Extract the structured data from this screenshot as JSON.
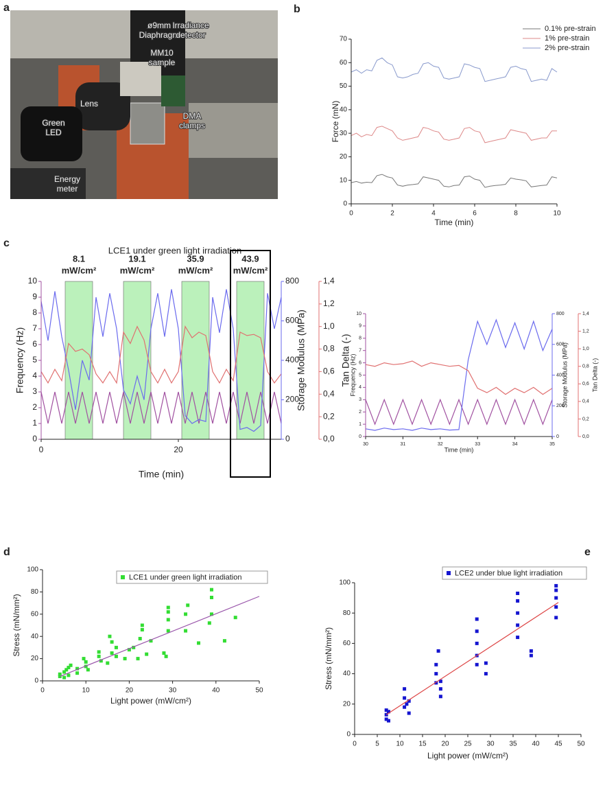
{
  "panels": [
    "a",
    "b",
    "c",
    "d",
    "e"
  ],
  "photo": {
    "labels": [
      {
        "lines": [
          "ø9mm",
          "Diaphragm"
        ]
      },
      {
        "lines": [
          "MM10",
          "sample"
        ]
      },
      {
        "lines": [
          "Irradiance",
          "detector"
        ]
      },
      {
        "lines": [
          "Lens"
        ]
      },
      {
        "lines": [
          "Green",
          "LED"
        ]
      },
      {
        "lines": [
          "DMA",
          "clamps"
        ]
      },
      {
        "lines": [
          "Energy",
          "meter"
        ]
      }
    ]
  },
  "chart_data": [
    {
      "type": "line",
      "xlabel": "Time (min)",
      "ylabel": "Force (mN)",
      "xlim": [
        0,
        10
      ],
      "ylim": [
        0,
        70
      ],
      "xticks": [
        0,
        2,
        4,
        6,
        8,
        10
      ],
      "yticks": [
        0,
        10,
        20,
        30,
        40,
        50,
        60,
        70
      ],
      "legend": "top-right",
      "x": [
        0,
        0.25,
        0.5,
        0.75,
        1,
        1.25,
        1.5,
        1.75,
        2,
        2.25,
        2.5,
        2.75,
        3,
        3.25,
        3.5,
        3.75,
        4,
        4.25,
        4.5,
        4.75,
        5,
        5.25,
        5.5,
        5.75,
        6,
        6.25,
        6.5,
        6.75,
        7,
        7.25,
        7.5,
        7.75,
        8,
        8.25,
        8.5,
        8.75,
        9,
        9.25,
        9.5,
        9.75,
        10
      ],
      "series": [
        {
          "name": "0.1% pre-strain",
          "color": "#777777",
          "values": [
            9,
            9.5,
            8.8,
            9.2,
            9,
            12,
            12.5,
            11.5,
            11,
            8,
            7.5,
            8,
            8.2,
            8.5,
            11.5,
            11,
            10.5,
            10,
            7.5,
            7.2,
            7.8,
            8,
            11.5,
            11.8,
            10.5,
            10,
            7,
            7.5,
            7.8,
            8,
            8.3,
            11,
            10.5,
            10.2,
            9.8,
            7.2,
            7.5,
            7.8,
            8,
            11.5,
            11
          ]
        },
        {
          "name": "1% pre-strain",
          "color": "#dd8888",
          "values": [
            29,
            30,
            28.5,
            29.5,
            29,
            32.5,
            33,
            32,
            31,
            28,
            27,
            27.5,
            28,
            28.5,
            32.5,
            32,
            31,
            30.5,
            27.5,
            27,
            27.5,
            28,
            32,
            32.5,
            31,
            30.5,
            26,
            26.5,
            27,
            27.5,
            28,
            31.5,
            31,
            30.5,
            30,
            27,
            27.5,
            28,
            28,
            31,
            31
          ]
        },
        {
          "name": "2% pre-strain",
          "color": "#8899cc",
          "values": [
            56,
            57,
            55.5,
            57,
            56.5,
            61,
            62,
            60,
            59,
            54,
            53.5,
            54,
            55,
            55.5,
            59.5,
            60,
            58.5,
            58,
            53.5,
            53,
            53.5,
            54,
            59.5,
            59,
            58,
            57.5,
            52,
            52.5,
            53,
            53.5,
            54,
            58,
            58.5,
            57.5,
            57,
            52,
            52.5,
            53,
            52.5,
            57.5,
            56
          ]
        }
      ]
    },
    {
      "type": "line",
      "title": "LCE1 under green light irradiation",
      "xlabel": "Time (min)",
      "ylabel": "Frequency (Hz)",
      "y2label": "Storage Modulus (MPa)",
      "y3label": "Tan Delta (-)",
      "xlim": [
        0,
        35
      ],
      "ylim": [
        0,
        10
      ],
      "y2lim": [
        0,
        800
      ],
      "y3lim": [
        0,
        1.4
      ],
      "xticks": [
        0,
        20
      ],
      "yticks": [
        0,
        1,
        2,
        3,
        4,
        5,
        6,
        7,
        8,
        9,
        10
      ],
      "y2ticks": [
        0,
        200,
        400,
        600,
        800
      ],
      "y3ticks": [
        {
          "value": 0,
          "label": "0,0"
        },
        {
          "value": 0.2,
          "label": "0,2"
        },
        {
          "value": 0.4,
          "label": "0,4"
        },
        {
          "value": 0.6,
          "label": "0,6"
        },
        {
          "value": 0.8,
          "label": "0,8"
        },
        {
          "value": 1,
          "label": "1,0"
        },
        {
          "value": 1.2,
          "label": "1,2"
        },
        {
          "value": 1.4,
          "label": "1,4"
        }
      ],
      "bands": [
        [
          3.5,
          7.5
        ],
        [
          12,
          16
        ],
        [
          20.5,
          24.5
        ],
        [
          28.5,
          32.5
        ]
      ],
      "band_color": "#55dd55",
      "highlight_band": 3,
      "annotations": [
        {
          "lines": [
            "8.1",
            "mW/cm²"
          ]
        },
        {
          "lines": [
            "19.1",
            "mW/cm²"
          ]
        },
        {
          "lines": [
            "35.9",
            "mW/cm²"
          ]
        },
        {
          "lines": [
            "43.9",
            "mW/cm²"
          ]
        }
      ],
      "x": [
        0,
        1,
        2,
        3,
        4,
        5,
        6,
        7,
        8,
        9,
        10,
        11,
        12,
        13,
        14,
        15,
        16,
        17,
        18,
        19,
        20,
        21,
        22,
        23,
        24,
        25,
        26,
        27,
        28,
        29,
        30,
        31,
        32,
        33,
        34,
        35
      ],
      "series": [
        {
          "color": "#a050a0",
          "values": [
            3,
            1,
            3,
            1,
            3,
            1,
            3,
            1,
            3,
            1,
            3,
            1,
            3,
            1,
            3,
            1,
            3,
            1,
            3,
            1,
            3,
            1,
            3,
            1,
            3,
            1,
            3,
            1,
            3,
            1,
            3,
            1,
            3,
            1,
            3,
            1
          ]
        },
        {
          "color": "#6a6aee",
          "axis": "y2",
          "values": [
            700,
            500,
            750,
            520,
            350,
            150,
            400,
            300,
            720,
            520,
            740,
            560,
            250,
            180,
            320,
            200,
            560,
            740,
            520,
            760,
            560,
            120,
            80,
            100,
            90,
            720,
            540,
            760,
            560,
            50,
            60,
            40,
            70,
            740,
            560,
            720
          ]
        },
        {
          "color": "#e07070",
          "axis": "y3",
          "values": [
            0.6,
            0.5,
            0.62,
            0.52,
            0.85,
            0.78,
            0.8,
            0.75,
            0.58,
            0.5,
            0.6,
            0.5,
            0.95,
            0.85,
            1.0,
            0.88,
            0.6,
            0.5,
            0.62,
            0.5,
            0.6,
            1.0,
            0.9,
            0.95,
            0.92,
            0.6,
            0.5,
            0.62,
            0.52,
            0.95,
            0.92,
            0.93,
            0.9,
            0.6,
            0.5,
            0.58
          ]
        }
      ]
    },
    {
      "type": "line",
      "xlabel": "Time (min)",
      "ylabel": "Frequency (Hz)",
      "y2label": "Storage Modulus (MPa)",
      "y3label": "Tan Delta (-)",
      "xlim": [
        30,
        35
      ],
      "ylim": [
        0,
        10
      ],
      "y2lim": [
        0,
        800
      ],
      "y3lim": [
        0,
        1.4
      ],
      "xticks": [
        30,
        31,
        32,
        33,
        34,
        35
      ],
      "yticks": [
        0,
        1,
        2,
        3,
        4,
        5,
        6,
        7,
        8,
        9,
        10
      ],
      "y2ticks": [
        0,
        200,
        400,
        600,
        800
      ],
      "y3ticks": [
        {
          "value": 0,
          "label": "0,0"
        },
        {
          "value": 0.2,
          "label": "0,2"
        },
        {
          "value": 0.4,
          "label": "0,4"
        },
        {
          "value": 0.6,
          "label": "0,6"
        },
        {
          "value": 0.8,
          "label": "0,8"
        },
        {
          "value": 1,
          "label": "1,0"
        },
        {
          "value": 1.2,
          "label": "1,2"
        },
        {
          "value": 1.4,
          "label": "1,4"
        }
      ],
      "x": [
        30,
        30.25,
        30.5,
        30.75,
        31,
        31.25,
        31.5,
        31.75,
        32,
        32.25,
        32.5,
        32.75,
        33,
        33.25,
        33.5,
        33.75,
        34,
        34.25,
        34.5,
        34.75,
        35
      ],
      "series": [
        {
          "color": "#a050a0",
          "values": [
            3,
            1,
            3,
            1,
            3,
            1,
            3,
            1,
            3,
            1,
            3,
            1,
            3,
            1,
            3,
            1,
            3,
            1,
            3,
            1,
            3
          ]
        },
        {
          "color": "#6a6aee",
          "axis": "y2",
          "values": [
            50,
            40,
            55,
            45,
            50,
            40,
            55,
            45,
            50,
            42,
            45,
            500,
            750,
            600,
            760,
            580,
            740,
            570,
            750,
            560,
            700
          ]
        },
        {
          "color": "#e07070",
          "axis": "y3",
          "values": [
            0.82,
            0.8,
            0.84,
            0.82,
            0.83,
            0.86,
            0.8,
            0.84,
            0.82,
            0.8,
            0.81,
            0.75,
            0.55,
            0.5,
            0.56,
            0.48,
            0.55,
            0.5,
            0.56,
            0.48,
            0.55
          ]
        }
      ]
    },
    {
      "type": "scatter",
      "xlabel": "Light power (mW/cm²)",
      "ylabel": "Stress (mN/mm²)",
      "xlim": [
        0,
        50
      ],
      "ylim": [
        0,
        100
      ],
      "xticks": [
        0,
        10,
        20,
        30,
        40,
        50
      ],
      "yticks": [
        0,
        20,
        40,
        60,
        80,
        100
      ],
      "legend": "top-right",
      "series": [
        {
          "name": "LCE1 under green light irradiation",
          "color": "#33dd33",
          "x": [
            4,
            4,
            5,
            5,
            5.5,
            6,
            6,
            6.5,
            8,
            8,
            9.5,
            10,
            10,
            10.5,
            13,
            13,
            13.5,
            15,
            15.5,
            16,
            16,
            17,
            17,
            19,
            20,
            21,
            22,
            22.5,
            23,
            23,
            24,
            25,
            28,
            28.5,
            29,
            29,
            29,
            29,
            33,
            33,
            33.5,
            36,
            38.5,
            39,
            39,
            39,
            42,
            44.5
          ],
          "values": [
            4,
            6,
            3,
            8,
            10,
            5,
            12,
            14,
            7,
            11,
            20,
            13,
            17,
            10,
            22,
            26,
            18,
            16,
            40,
            25,
            35,
            30,
            22,
            20,
            28,
            30,
            20,
            38,
            46,
            50,
            24,
            36,
            25,
            22,
            45,
            55,
            62,
            66,
            45,
            60,
            68,
            34,
            52,
            60,
            75,
            82,
            36,
            57
          ]
        }
      ],
      "fit_line": {
        "color": "#9955aa",
        "x": [
          4,
          50
        ],
        "y": [
          4,
          76
        ]
      }
    },
    {
      "type": "scatter",
      "xlabel": "Light power (mW/cm²)",
      "ylabel": "Stress (mN/mm²)",
      "xlim": [
        0,
        50
      ],
      "ylim": [
        0,
        100
      ],
      "xticks": [
        0,
        5,
        10,
        15,
        20,
        25,
        30,
        35,
        40,
        45,
        50
      ],
      "yticks": [
        0,
        20,
        40,
        60,
        80,
        100
      ],
      "legend": "top-right",
      "series": [
        {
          "name": "LCE2 under blue light irradiation",
          "color": "#1515d0",
          "x": [
            7,
            7,
            7,
            7.5,
            7.5,
            11,
            11,
            11,
            11.5,
            12,
            12,
            18,
            18,
            18,
            18.5,
            19,
            19,
            19,
            27,
            27,
            27,
            27,
            27,
            29,
            29,
            36,
            36,
            36,
            36,
            36,
            39,
            39,
            44.5,
            44.5,
            44.5,
            44.5,
            44.5
          ],
          "values": [
            10,
            13,
            16,
            9,
            15,
            18,
            24,
            30,
            20,
            14,
            22,
            34,
            40,
            46,
            55,
            25,
            30,
            35,
            46,
            52,
            60,
            68,
            76,
            40,
            47,
            64,
            72,
            80,
            88,
            93,
            52,
            55,
            77,
            84,
            90,
            95,
            98
          ]
        }
      ],
      "fit_line": {
        "color": "#dd4444",
        "x": [
          7,
          45
        ],
        "y": [
          13,
          87
        ]
      }
    }
  ]
}
